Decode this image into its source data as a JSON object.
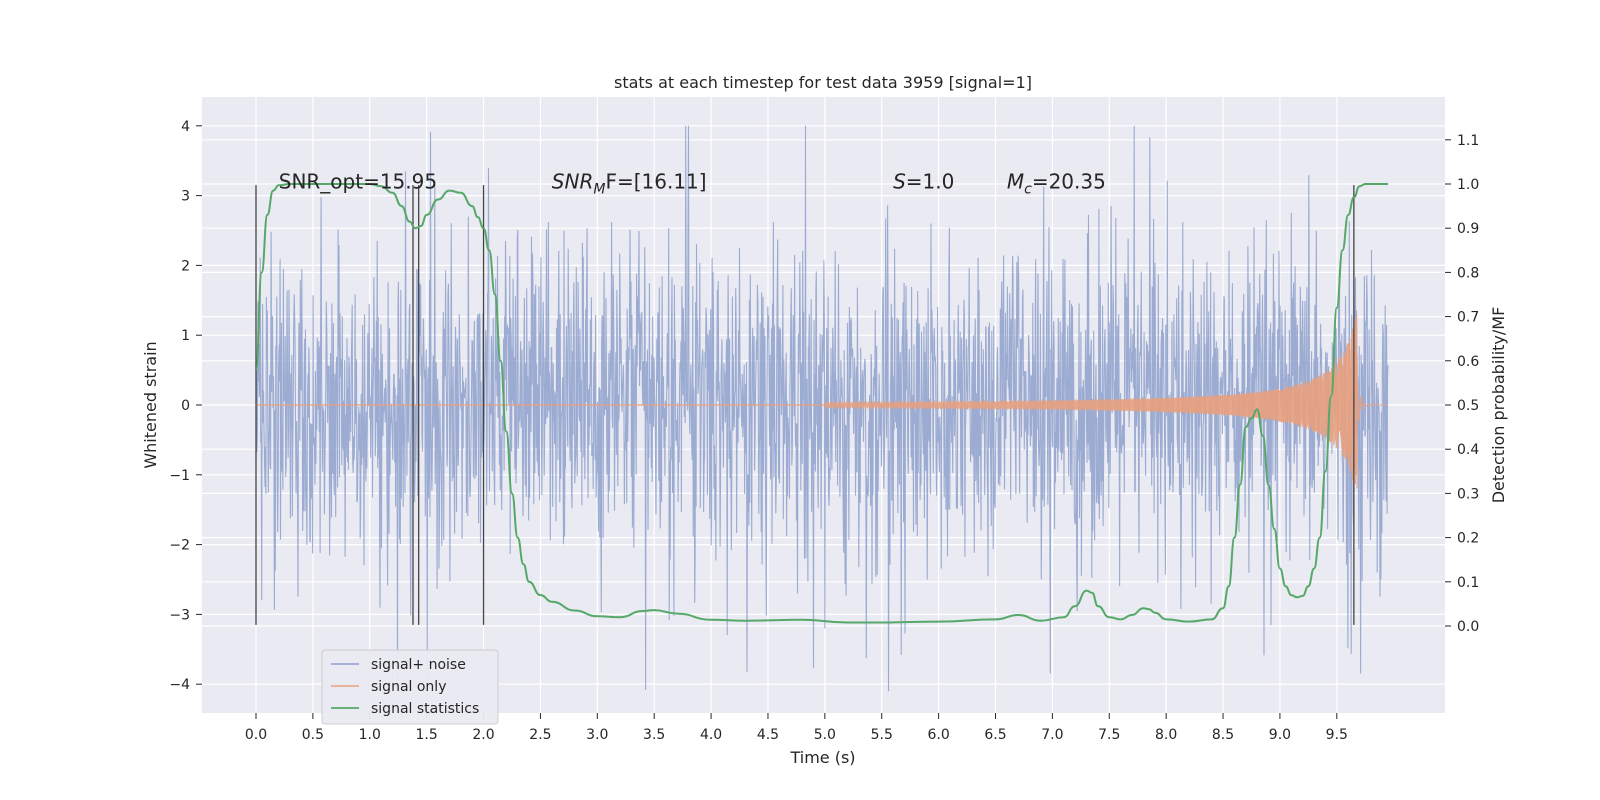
{
  "chart_data": {
    "type": "line",
    "title": "stats at each timestep for test data 3959 [signal=1]",
    "xlabel": "Time (s)",
    "ylabel_left": "Whitened strain",
    "ylabel_right": "Detection probability/MF",
    "xlim": [
      -0.5,
      10.5
    ],
    "ylim_left": [
      -4.5,
      4.4
    ],
    "ylim_right": [
      -0.2,
      1.18
    ],
    "x_ticks": [
      "0.0",
      "0.5",
      "1.0",
      "1.5",
      "2.0",
      "2.5",
      "3.0",
      "3.5",
      "4.0",
      "4.5",
      "5.0",
      "5.5",
      "6.0",
      "6.5",
      "7.0",
      "7.5",
      "8.0",
      "8.5",
      "9.0",
      "9.5"
    ],
    "y_ticks_left": [
      "4",
      "3",
      "2",
      "1",
      "0",
      "−1",
      "−2",
      "−3",
      "−4"
    ],
    "y_ticks_right": [
      "1.1",
      "1.0",
      "0.9",
      "0.8",
      "0.7",
      "0.6",
      "0.5",
      "0.4",
      "0.3",
      "0.2",
      "0.1",
      "0.0"
    ],
    "annotations": [
      {
        "x": 0.2,
        "y": 3.1,
        "text": "SNR_opt=15.95"
      },
      {
        "x": 2.6,
        "y": 3.1,
        "label": "SNR",
        "sub": "M",
        "suffix": "F=[16.11]"
      },
      {
        "x": 5.6,
        "y": 3.1,
        "label": "S",
        "suffix": "=1.0"
      },
      {
        "x": 6.6,
        "y": 3.1,
        "label": "M",
        "sub": "c",
        "suffix": "=20.35"
      }
    ],
    "vlines": [
      0.0,
      1.38,
      1.43,
      2.0,
      9.65
    ],
    "vline_range": [
      -3.15,
      3.15
    ],
    "series": [
      {
        "name": "signal+ noise",
        "color": "#8da0cb"
      },
      {
        "name": "signal only",
        "color": "#e8a07e"
      },
      {
        "name": "signal statistics",
        "color": "#55a868",
        "axis": "right",
        "x": [
          0.0,
          0.05,
          0.1,
          0.15,
          0.2,
          0.3,
          0.5,
          0.8,
          1.0,
          1.1,
          1.2,
          1.28,
          1.35,
          1.4,
          1.45,
          1.5,
          1.6,
          1.7,
          1.8,
          1.9,
          1.95,
          2.0,
          2.05,
          2.1,
          2.15,
          2.2,
          2.25,
          2.3,
          2.35,
          2.4,
          2.5,
          2.6,
          2.8,
          3.0,
          3.2,
          3.4,
          3.5,
          3.7,
          4.0,
          4.3,
          4.8,
          5.2,
          5.5,
          6.0,
          6.5,
          6.7,
          6.9,
          7.1,
          7.2,
          7.3,
          7.35,
          7.4,
          7.5,
          7.6,
          7.7,
          7.8,
          7.85,
          7.9,
          8.0,
          8.2,
          8.4,
          8.5,
          8.55,
          8.6,
          8.65,
          8.7,
          8.75,
          8.8,
          8.85,
          8.9,
          8.95,
          9.0,
          9.05,
          9.1,
          9.15,
          9.2,
          9.25,
          9.3,
          9.35,
          9.4,
          9.45,
          9.5,
          9.55,
          9.6,
          9.65,
          9.7,
          9.75,
          9.85,
          9.95
        ],
        "values": [
          0.58,
          0.8,
          0.93,
          0.985,
          0.997,
          1.0,
          1.0,
          1.0,
          1.0,
          0.995,
          0.98,
          0.95,
          0.915,
          0.9,
          0.905,
          0.93,
          0.965,
          0.985,
          0.98,
          0.95,
          0.925,
          0.9,
          0.85,
          0.75,
          0.6,
          0.44,
          0.3,
          0.2,
          0.14,
          0.1,
          0.07,
          0.055,
          0.035,
          0.022,
          0.02,
          0.034,
          0.036,
          0.028,
          0.014,
          0.012,
          0.014,
          0.008,
          0.008,
          0.01,
          0.015,
          0.025,
          0.012,
          0.02,
          0.045,
          0.08,
          0.075,
          0.045,
          0.02,
          0.015,
          0.025,
          0.04,
          0.038,
          0.03,
          0.015,
          0.01,
          0.015,
          0.04,
          0.09,
          0.2,
          0.32,
          0.45,
          0.47,
          0.49,
          0.43,
          0.32,
          0.22,
          0.13,
          0.09,
          0.07,
          0.065,
          0.068,
          0.09,
          0.13,
          0.2,
          0.35,
          0.52,
          0.72,
          0.85,
          0.93,
          0.97,
          0.995,
          1.0,
          1.0,
          1.0
        ]
      }
    ],
    "legend_position": "lower left",
    "grid": true
  }
}
